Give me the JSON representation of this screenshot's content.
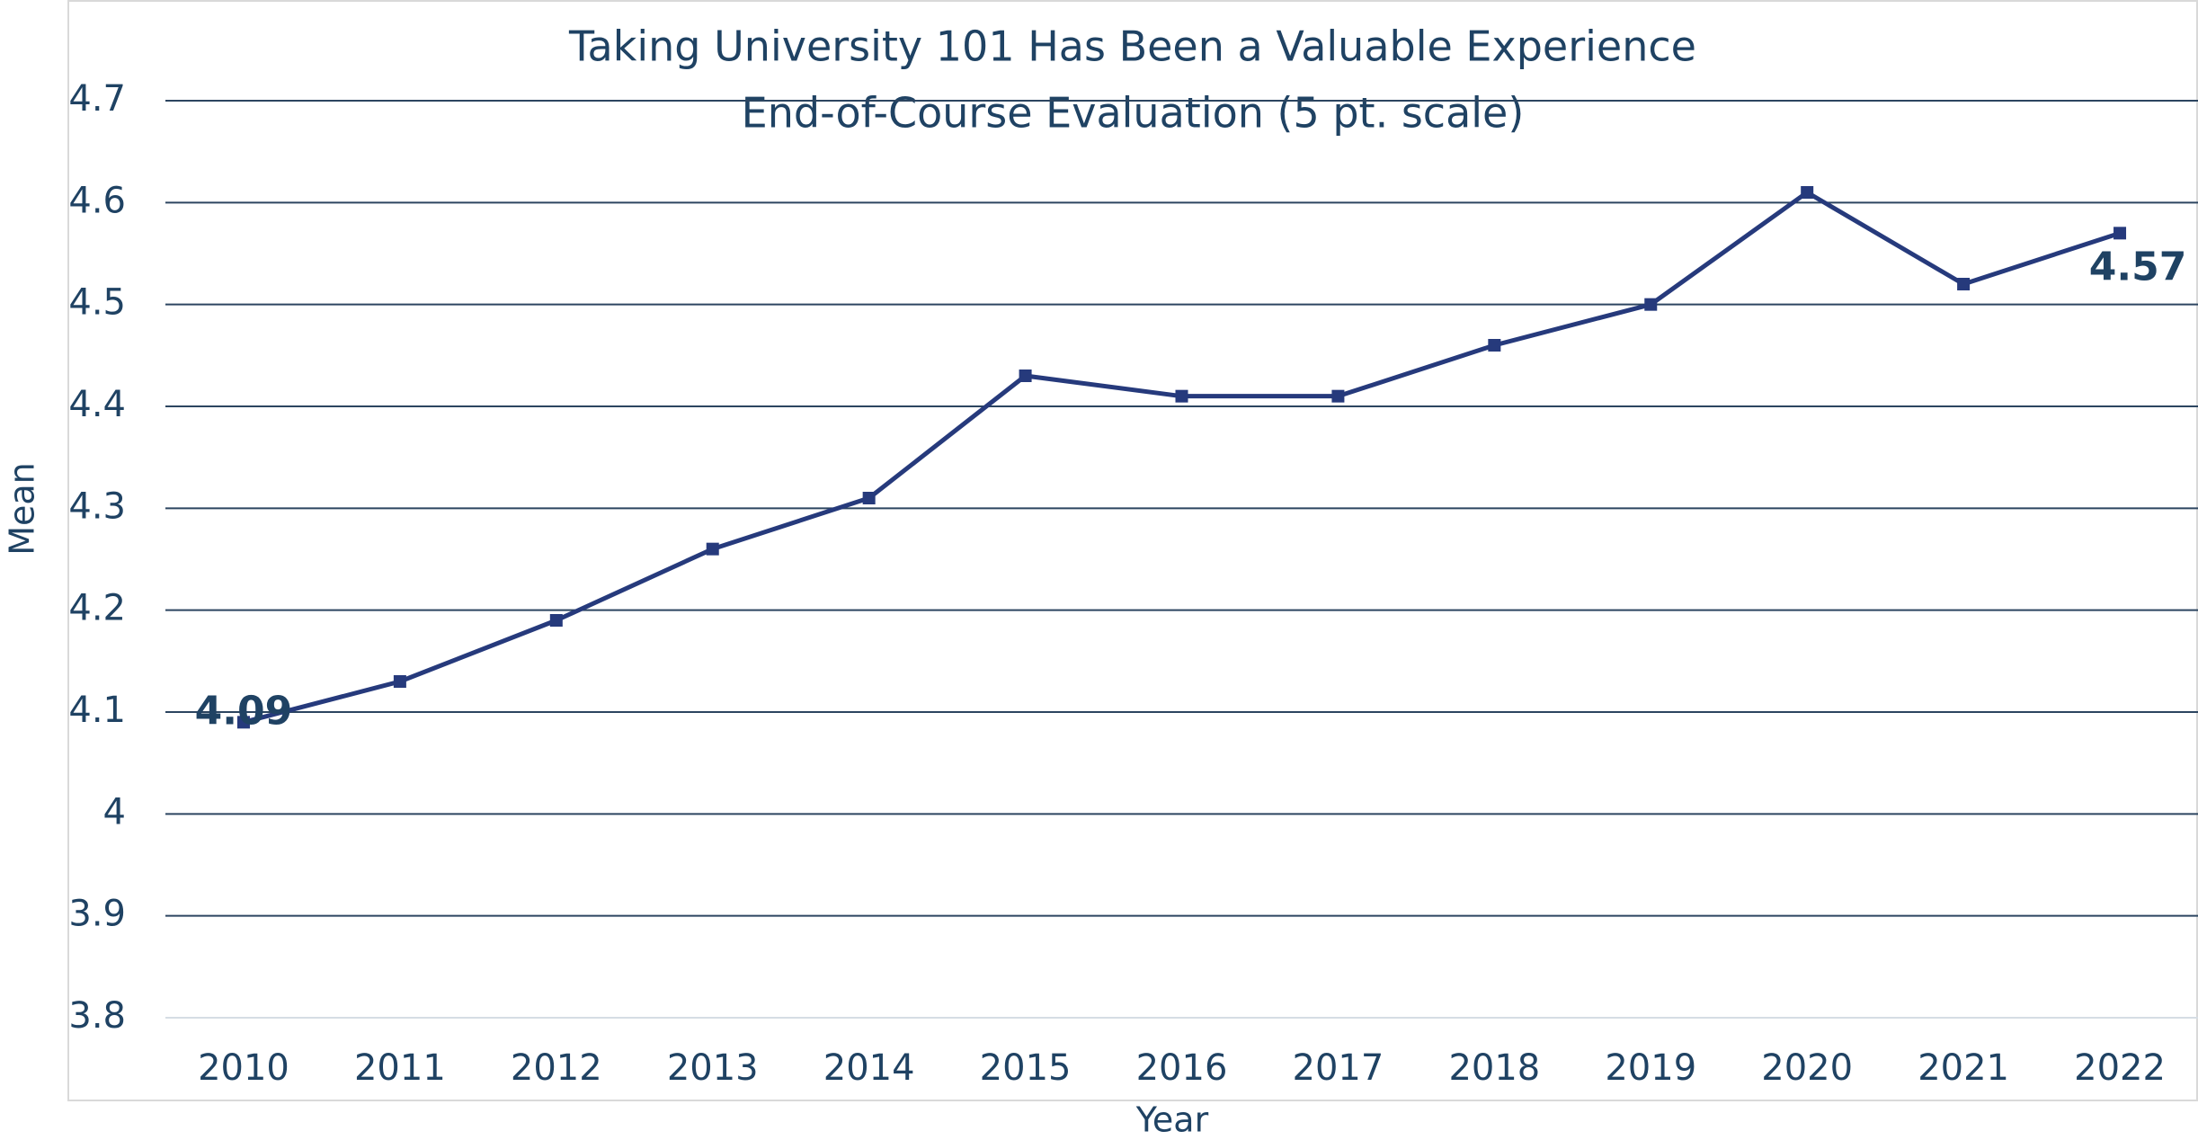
{
  "chart_data": {
    "type": "line",
    "title": "Taking University 101 Has Been a Valuable Experience",
    "subtitle": "End-of-Course Evaluation (5 pt. scale)",
    "x_label": "Year",
    "y_label": "Mean",
    "categories": [
      "2010",
      "2011",
      "2012",
      "2013",
      "2014",
      "2015",
      "2016",
      "2017",
      "2018",
      "2019",
      "2020",
      "2021",
      "2022"
    ],
    "series": [
      {
        "name": "Mean",
        "color": "#263a7c",
        "values": [
          4.09,
          4.13,
          4.19,
          4.26,
          4.31,
          4.43,
          4.41,
          4.41,
          4.46,
          4.5,
          4.61,
          4.52,
          4.57
        ],
        "value_labels": [
          "4.09",
          null,
          null,
          null,
          null,
          null,
          null,
          null,
          null,
          null,
          null,
          null,
          "4.57"
        ]
      }
    ],
    "ylim": [
      3.8,
      4.7
    ],
    "yticks": [
      3.8,
      3.9,
      4,
      4.1,
      4.2,
      4.3,
      4.4,
      4.5,
      4.6,
      4.7
    ],
    "grid": true
  }
}
